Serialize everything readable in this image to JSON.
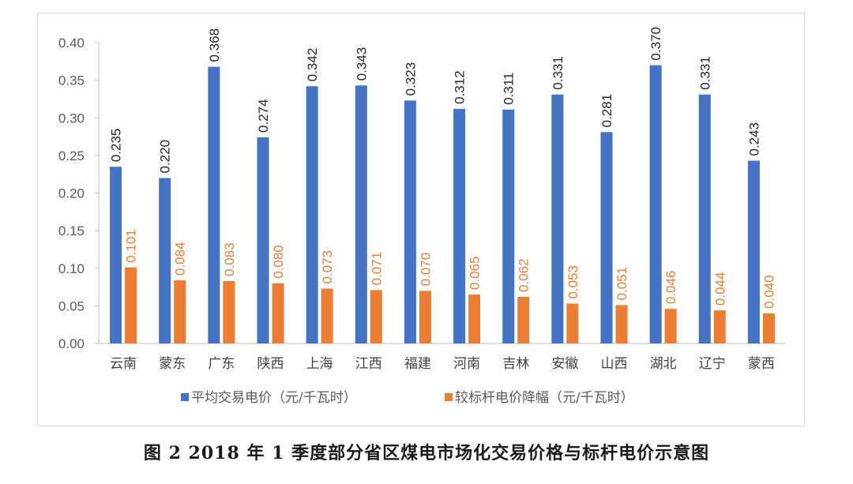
{
  "caption": "图 2   2018 年 1 季度部分省区煤电市场化交易价格与标杆电价示意图",
  "chart_data": {
    "type": "bar",
    "title": "",
    "xlabel": "",
    "ylabel": "",
    "ylim": [
      0,
      0.4
    ],
    "yticks": [
      "0.00",
      "0.05",
      "0.10",
      "0.15",
      "0.20",
      "0.25",
      "0.30",
      "0.35",
      "0.40"
    ],
    "grid": false,
    "legend_position": "bottom",
    "categories": [
      "云南",
      "蒙东",
      "广东",
      "陕西",
      "上海",
      "江西",
      "福建",
      "河南",
      "吉林",
      "安徽",
      "山西",
      "湖北",
      "辽宁",
      "蒙西"
    ],
    "series": [
      {
        "name": "平均交易电价（元/千瓦时）",
        "color": "#4472c4",
        "values": [
          0.235,
          0.22,
          0.368,
          0.274,
          0.342,
          0.343,
          0.323,
          0.312,
          0.311,
          0.331,
          0.281,
          0.37,
          0.331,
          0.243
        ],
        "labels": [
          "0.235",
          "0.220",
          "0.368",
          "0.274",
          "0.342",
          "0.343",
          "0.323",
          "0.312",
          "0.311",
          "0.331",
          "0.281",
          "0.370",
          "0.331",
          "0.243"
        ]
      },
      {
        "name": "较标杆电价降幅（元/千瓦时）",
        "color": "#ed7d31",
        "values": [
          0.101,
          0.084,
          0.083,
          0.08,
          0.073,
          0.071,
          0.07,
          0.065,
          0.062,
          0.053,
          0.051,
          0.046,
          0.044,
          0.04
        ],
        "labels": [
          "0.101",
          "0.084",
          "0.083",
          "0.080",
          "0.073",
          "0.071",
          "0.070",
          "0.065",
          "0.062",
          "0.053",
          "0.051",
          "0.046",
          "0.044",
          "0.040"
        ]
      }
    ]
  }
}
